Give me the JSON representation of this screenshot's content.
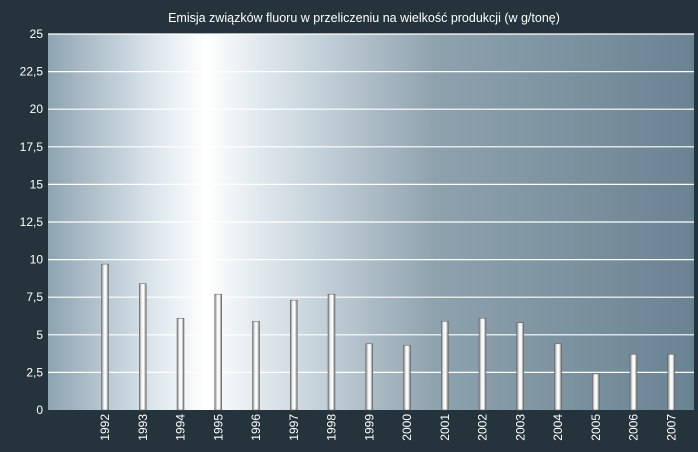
{
  "chart_data": {
    "type": "bar",
    "title": "Emisja związków fluoru w przeliczeniu na wielkość produkcji (w g/tonę)",
    "xlabel": "",
    "ylabel": "",
    "categories": [
      "1992",
      "1993",
      "1994",
      "1995",
      "1996",
      "1997",
      "1998",
      "1999",
      "2000",
      "2001",
      "2002",
      "2003",
      "2004",
      "2005",
      "2006",
      "2007"
    ],
    "values": [
      9.7,
      8.4,
      6.1,
      7.7,
      5.9,
      7.3,
      7.7,
      4.4,
      4.3,
      5.9,
      6.1,
      5.8,
      4.4,
      2.4,
      3.7,
      3.7
    ],
    "ylim": [
      0,
      25
    ],
    "yticks": [
      "0",
      "2,5",
      "5",
      "7,5",
      "10",
      "12,5",
      "15",
      "17,5",
      "20",
      "22,5",
      "25"
    ],
    "grid": true,
    "colors": {
      "background": "#25343c",
      "plot_light": "#ffffff",
      "plot_mid": "#b7c6d0",
      "plot_dark": "#6c8593",
      "gridline": "#ffffff",
      "bar": "#d8d8d8"
    }
  }
}
